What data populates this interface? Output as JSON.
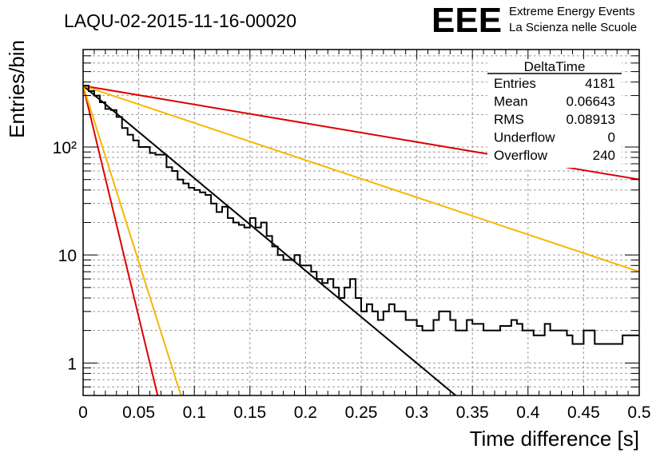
{
  "title": "LAQU-02-2015-11-16-00020",
  "logo": {
    "mark": "EEE",
    "line1": "Extreme Energy Events",
    "line2": "La Scienza nelle Scuole",
    "color": "#1a1aff"
  },
  "stats": {
    "header": "DeltaTime",
    "rows": [
      {
        "label": "Entries",
        "value": "4181"
      },
      {
        "label": "Mean",
        "value": "0.06643"
      },
      {
        "label": "RMS",
        "value": "0.08913"
      },
      {
        "label": "Underflow",
        "value": "0"
      },
      {
        "label": "Overflow",
        "value": "240"
      }
    ]
  },
  "chart_data": {
    "type": "line",
    "xlabel": "Time difference [s]",
    "ylabel": "Entries/bin",
    "xlim": [
      0,
      0.5
    ],
    "ylim": [
      0.5,
      800
    ],
    "yscale": "log",
    "grid": true,
    "xticks": [
      "0",
      "0.05",
      "0.1",
      "0.15",
      "0.2",
      "0.25",
      "0.3",
      "0.35",
      "0.4",
      "0.45",
      "0.5"
    ],
    "yticks": [
      {
        "value": 1,
        "label": "1"
      },
      {
        "value": 10,
        "label": "10"
      },
      {
        "value": 100,
        "label": "10²"
      }
    ],
    "histogram": {
      "bin_width": 0.005,
      "values": [
        370,
        330,
        300,
        260,
        225,
        220,
        190,
        150,
        130,
        115,
        100,
        100,
        88,
        85,
        85,
        65,
        60,
        50,
        46,
        42,
        40,
        38,
        36,
        30,
        25,
        28,
        22,
        20,
        19,
        18,
        22,
        18,
        20,
        15,
        12,
        10,
        9,
        9,
        10,
        8,
        8,
        7,
        6,
        5.5,
        6,
        5,
        4,
        5,
        6,
        4,
        3,
        3.5,
        3,
        2.5,
        3,
        3.5,
        3,
        3,
        2.5,
        2.5,
        2.2,
        2,
        2,
        2.5,
        3,
        3,
        2.5,
        2,
        2,
        2.5,
        2.3,
        2.3,
        2,
        2,
        2,
        2.2,
        2.2,
        2.5,
        2.3,
        2,
        2,
        1.8,
        1.8,
        2.3,
        2,
        2,
        2,
        1.8,
        1.5,
        1.5,
        2,
        2,
        1.5,
        1.5,
        1.5,
        1.5,
        1.5,
        1.8,
        1.8,
        1.8
      ],
      "color": "#000000"
    },
    "fits": [
      {
        "color": "#000000",
        "points": [
          [
            0,
            370
          ],
          [
            0.335,
            0.5
          ]
        ]
      },
      {
        "color": "#dd0000",
        "points": [
          [
            0,
            370
          ],
          [
            0.5,
            50
          ]
        ]
      },
      {
        "color": "#f5b800",
        "points": [
          [
            0,
            370
          ],
          [
            0.5,
            7
          ]
        ]
      },
      {
        "color": "#dd0000",
        "points": [
          [
            0,
            370
          ],
          [
            0.067,
            0.5
          ]
        ]
      },
      {
        "color": "#f5b800",
        "points": [
          [
            0,
            370
          ],
          [
            0.088,
            0.5
          ]
        ]
      }
    ]
  }
}
